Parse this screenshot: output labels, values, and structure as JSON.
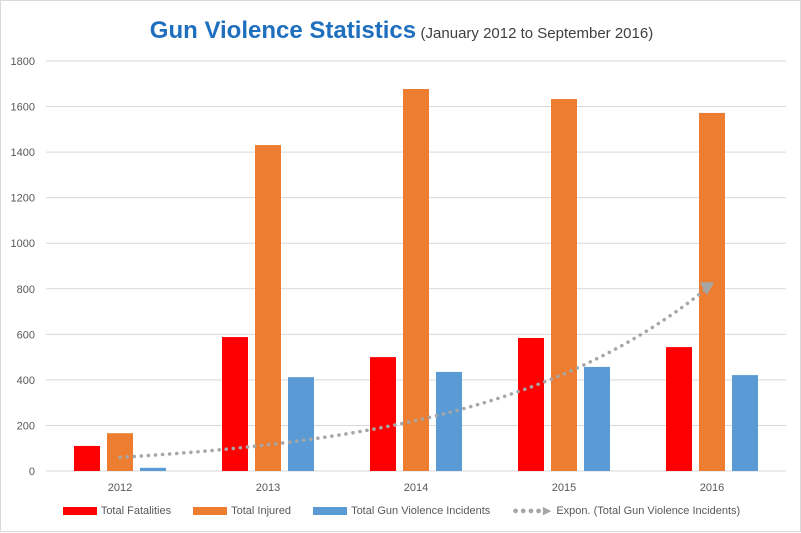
{
  "chart_data": {
    "type": "bar",
    "title": "Gun Violence Statistics",
    "subtitle": "(January 2012 to September  2016)",
    "categories": [
      "2012",
      "2013",
      "2014",
      "2015",
      "2016"
    ],
    "series": [
      {
        "name": "Total Fatalities",
        "color": "#ff0000",
        "values": [
          110,
          588,
          500,
          584,
          544
        ]
      },
      {
        "name": "Total Injured",
        "color": "#ed7d31",
        "values": [
          166,
          1431,
          1677,
          1633,
          1572
        ]
      },
      {
        "name": "Total Gun Violence Incidents",
        "color": "#5b9bd5",
        "values": [
          14,
          412,
          435,
          457,
          421
        ]
      }
    ],
    "trendline": {
      "name": "Expon. (Total Gun Violence Incidents)",
      "type": "exponential",
      "color": "#a6a6a6",
      "start_value": 60,
      "end_value": 820
    },
    "ylim": [
      0,
      1800
    ],
    "yticks": [
      "0",
      "200",
      "400",
      "600",
      "800",
      "1000",
      "1200",
      "1400",
      "1600",
      "1800"
    ],
    "grid": true,
    "legend": "bottom",
    "xlabel": "",
    "ylabel": ""
  }
}
